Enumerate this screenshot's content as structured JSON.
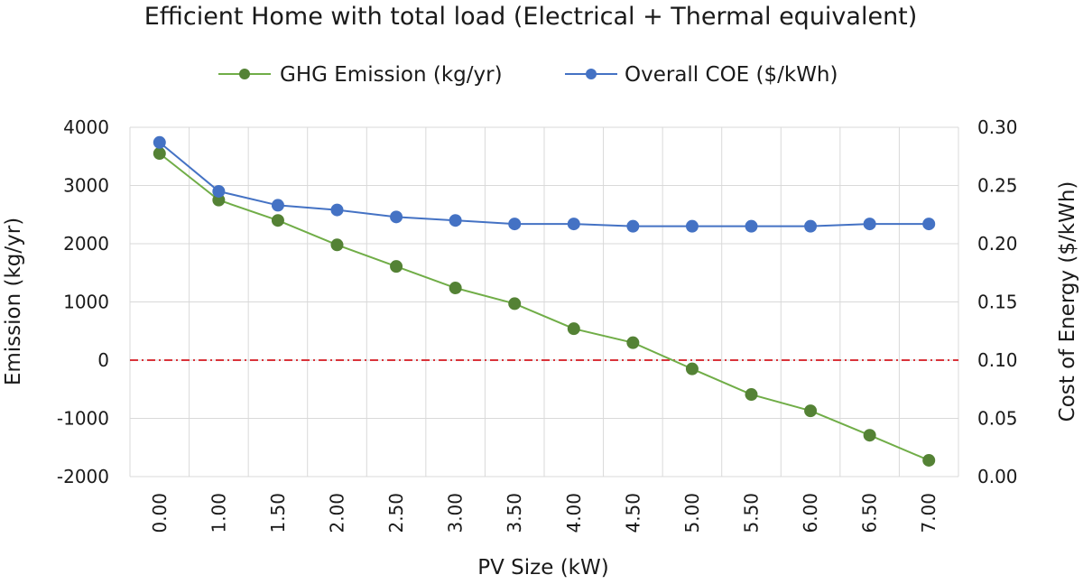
{
  "chart_data": {
    "type": "line",
    "title": "Efficient Home with total load (Electrical + Thermal equivalent)",
    "xlabel": "PV Size (kW)",
    "ylabel": "Emission (kg/yr)",
    "y2label": "Cost of Energy ($/kWh)",
    "categories": [
      "0.00",
      "1.00",
      "1.50",
      "2.00",
      "2.50",
      "3.00",
      "3.50",
      "4.00",
      "4.50",
      "5.00",
      "5.50",
      "6.00",
      "6.50",
      "7.00"
    ],
    "ylim": [
      -2000,
      4000
    ],
    "yticks": [
      "-2000",
      "-1000",
      "0",
      "1000",
      "2000",
      "3000",
      "4000"
    ],
    "y2lim": [
      0.0,
      0.3
    ],
    "y2ticks": [
      "0.00",
      "0.05",
      "0.10",
      "0.15",
      "0.20",
      "0.25",
      "0.30"
    ],
    "grid": true,
    "legend_position": "top",
    "series": [
      {
        "name": "GHG Emission (kg/yr)",
        "axis": "left",
        "color": "#548235",
        "line_color": "#70ad47",
        "values": [
          3550,
          2750,
          2400,
          1980,
          1610,
          1240,
          970,
          540,
          300,
          -150,
          -590,
          -870,
          -1290,
          -1720
        ]
      },
      {
        "name": "Overall COE ($/kWh)",
        "axis": "right",
        "color": "#4472c4",
        "line_color": "#4472c4",
        "values": [
          0.287,
          0.245,
          0.233,
          0.229,
          0.223,
          0.22,
          0.217,
          0.217,
          0.215,
          0.215,
          0.215,
          0.215,
          0.217,
          0.217
        ]
      }
    ],
    "reference_line": {
      "value": 0,
      "axis": "left",
      "color": "#d9343a"
    }
  }
}
